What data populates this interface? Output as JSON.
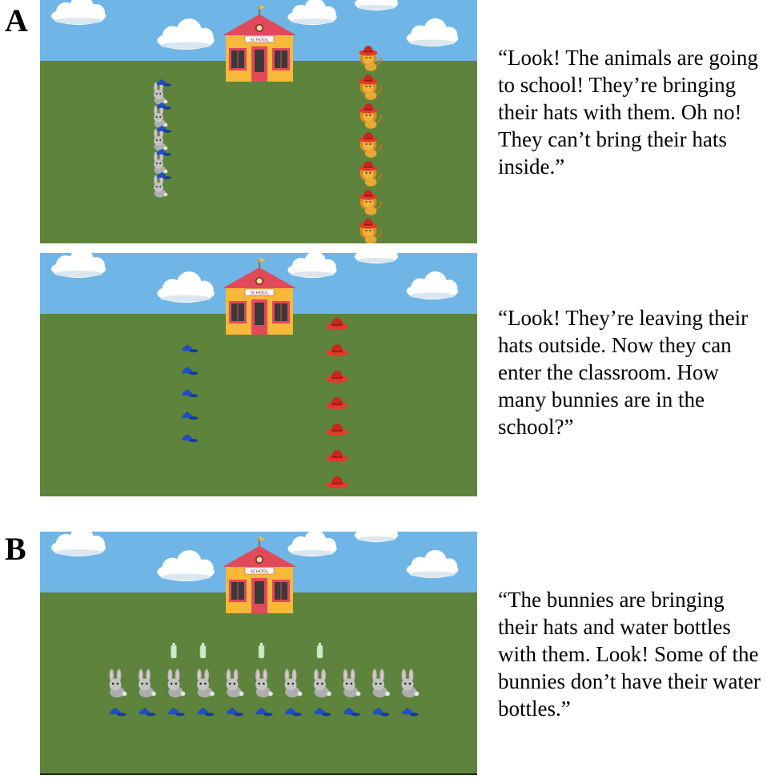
{
  "panels": [
    {
      "letter": "A",
      "scenes": [
        {
          "caption": "“Look! The animals are going to school! They’re bringing their hats with them. Oh no! They can’t bring their hats inside.”",
          "school_sign": "SCHOOL",
          "groups": [
            {
              "animal": "bunny-icon",
              "hat": "blue-cap-icon",
              "count": 5
            },
            {
              "animal": "lion-icon",
              "hat": "red-hat-icon",
              "count": 7
            }
          ]
        },
        {
          "caption": "“Look! They’re leaving their hats outside. Now they can enter the classroom. How many bunnies are in the school?”",
          "school_sign": "SCHOOL",
          "groups": [
            {
              "hat": "blue-cap-icon",
              "count": 5
            },
            {
              "hat": "red-hat-icon",
              "count": 7
            }
          ]
        }
      ]
    },
    {
      "letter": "B",
      "scenes": [
        {
          "caption": "“The bunnies are bringing their hats and water bottles with them. Look! Some of the bunnies don’t have their water bottles.”",
          "school_sign": "SCHOOL",
          "bunny_count": 11,
          "bottles": [
            false,
            false,
            true,
            true,
            false,
            true,
            false,
            true,
            false,
            false,
            false
          ]
        }
      ]
    }
  ],
  "colors": {
    "sky": "#6fb6e6",
    "grass": "#5e833c",
    "school_wall": "#f7b93a",
    "school_roof": "#e2495b",
    "blue_cap": "#1f4fc7",
    "red_hat": "#e23a2c",
    "bottle": "#cfe8c8"
  }
}
